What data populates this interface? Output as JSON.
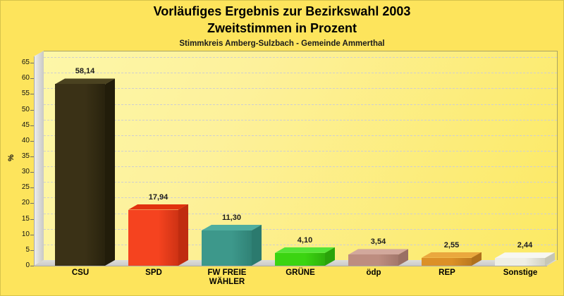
{
  "chart_data": {
    "type": "bar",
    "style": "3d-bars",
    "title": "Vorläufiges Ergebnis zur Bezirkswahl 2003",
    "subtitle": "Zweitstimmen in Prozent",
    "caption": "Stimmkreis Amberg-Sulzbach - Gemeinde Ammerthal",
    "xlabel": "",
    "ylabel": "%",
    "ylim": [
      0,
      65
    ],
    "ytick_step": 5,
    "grid": "horizontal-dashed",
    "legend": "none",
    "decimal_separator": ",",
    "categories": [
      "CSU",
      "SPD",
      "FW FREIE WÄHLER",
      "GRÜNE",
      "ödp",
      "REP",
      "Sonstige"
    ],
    "values": [
      58.14,
      17.94,
      11.3,
      4.1,
      3.54,
      2.55,
      2.44
    ],
    "bars": [
      {
        "id": "csu",
        "label": "CSU",
        "value": 58.14,
        "display": "58,14",
        "front": "#3a3116",
        "top": "#4a4220",
        "side": "#221d0a"
      },
      {
        "id": "spd",
        "label": "SPD",
        "value": 17.94,
        "display": "17,94",
        "front": "#f5431f",
        "top": "#e1320e",
        "side": "#c02c10"
      },
      {
        "id": "fw-freie-waehler",
        "label": "FW FREIE\nWÄHLER",
        "value": 11.3,
        "display": "11,30",
        "front": "#3d988b",
        "top": "#4fae9f",
        "side": "#2b7a6e"
      },
      {
        "id": "gruene",
        "label": "GRÜNE",
        "value": 4.1,
        "display": "4,10",
        "front": "#3bd411",
        "top": "#55e437",
        "side": "#2aa30a"
      },
      {
        "id": "oedp",
        "label": "ödp",
        "value": 3.54,
        "display": "3,54",
        "front": "#bd8d80",
        "top": "#d2a89c",
        "side": "#9a7064"
      },
      {
        "id": "rep",
        "label": "REP",
        "value": 2.55,
        "display": "2,55",
        "front": "#dc9027",
        "top": "#eaa83e",
        "side": "#b0711c"
      },
      {
        "id": "sonstige",
        "label": "Sonstige",
        "value": 2.44,
        "display": "2,44",
        "front": "#efefe5",
        "top": "#f7f7f1",
        "side": "#c6c6b6"
      }
    ]
  },
  "colors": {
    "background": "#fde45c",
    "plot_background_light": "#fdf7a8",
    "plot_background_dark": "#fce963",
    "grid": "#cfcfcf",
    "wall": "#dcdcdc",
    "floor": "#d2d0cc",
    "plot_border": "#a9a464",
    "text": "#111111"
  }
}
